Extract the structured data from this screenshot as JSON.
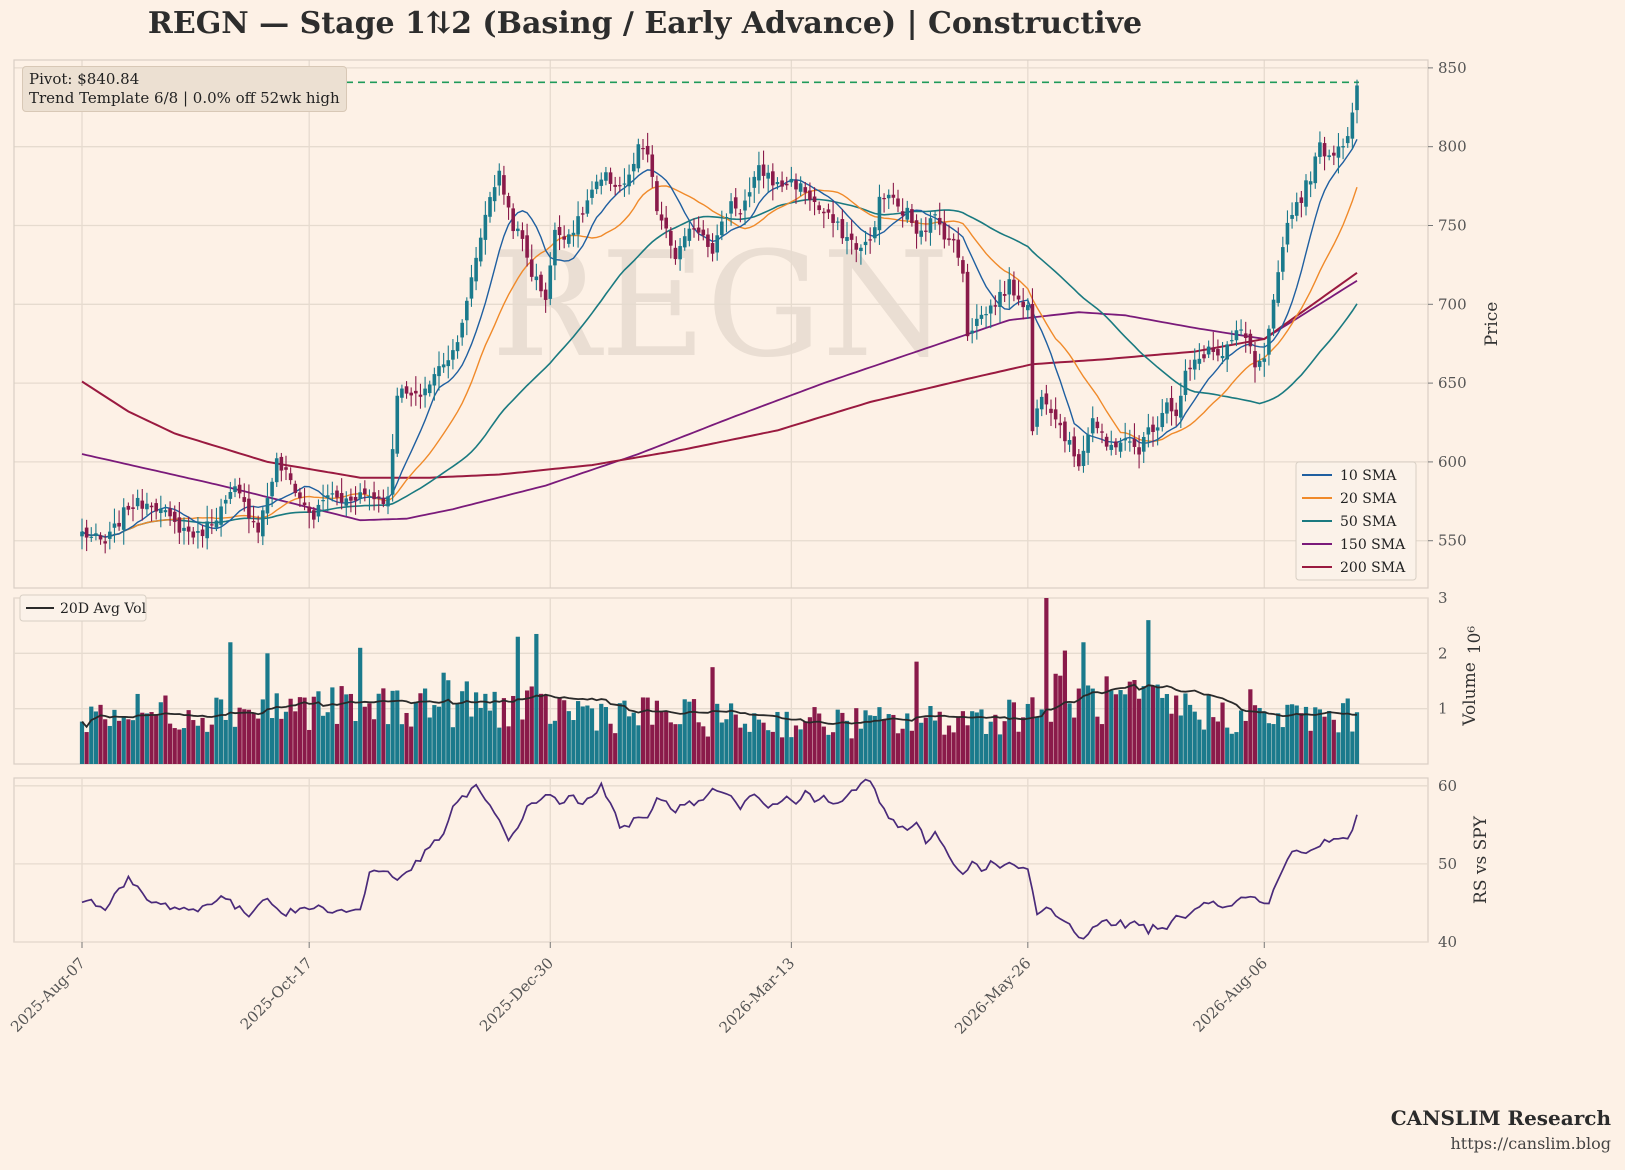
{
  "title": "REGN  —  Stage 1⇅2 (Basing / Early Advance)  |  Constructive",
  "annotation": {
    "pivot": "Pivot: $840.84",
    "trend": "Trend Template 6/8  |  0.0% off 52wk high"
  },
  "watermark": "REGN",
  "brand": {
    "name": "CANSLIM Research",
    "url": "https://canslim.blog"
  },
  "colors": {
    "background": "#fdf1e6",
    "up": "#1a7a8c",
    "down": "#8a1a4a",
    "sma10": "#1f5fa0",
    "sma20": "#f08a2a",
    "sma50": "#1a7a80",
    "sma150": "#7a1a7a",
    "sma200": "#9a1a40",
    "pivot": "#1f9a5a",
    "rs": "#4a2a7a",
    "avgvol": "#2a2a2a"
  },
  "chart_data": [
    {
      "type": "candlestick",
      "panel": "price",
      "ylabel": "Price",
      "ylim": [
        520,
        855
      ],
      "yticks": [
        550,
        600,
        650,
        700,
        750,
        800,
        850
      ],
      "xticklabels": [
        "2025-Aug-07",
        "2025-Oct-17",
        "2025-Dec-30",
        "2026-Mar-13",
        "2026-May-26",
        "2026-Aug-06"
      ],
      "pivot": 840.84,
      "close_anchors": [
        [
          0,
          555
        ],
        [
          5,
          548
        ],
        [
          10,
          572
        ],
        [
          15,
          575
        ],
        [
          20,
          560
        ],
        [
          25,
          553
        ],
        [
          30,
          570
        ],
        [
          33,
          582
        ],
        [
          36,
          568
        ],
        [
          38,
          558
        ],
        [
          40,
          578
        ],
        [
          42,
          600
        ],
        [
          45,
          588
        ],
        [
          48,
          572
        ],
        [
          50,
          565
        ],
        [
          53,
          580
        ],
        [
          56,
          575
        ],
        [
          60,
          580
        ],
        [
          66,
          576
        ],
        [
          68,
          645
        ],
        [
          72,
          640
        ],
        [
          75,
          650
        ],
        [
          78,
          664
        ],
        [
          80,
          670
        ],
        [
          83,
          700
        ],
        [
          85,
          730
        ],
        [
          88,
          770
        ],
        [
          90,
          782
        ],
        [
          93,
          750
        ],
        [
          95,
          740
        ],
        [
          97,
          720
        ],
        [
          100,
          705
        ],
        [
          102,
          745
        ],
        [
          105,
          745
        ],
        [
          107,
          752
        ],
        [
          110,
          772
        ],
        [
          113,
          780
        ],
        [
          116,
          775
        ],
        [
          118,
          780
        ],
        [
          120,
          798
        ],
        [
          122,
          795
        ],
        [
          124,
          760
        ],
        [
          126,
          745
        ],
        [
          128,
          730
        ],
        [
          130,
          740
        ],
        [
          132,
          750
        ],
        [
          134,
          745
        ],
        [
          136,
          735
        ],
        [
          138,
          750
        ],
        [
          140,
          765
        ],
        [
          142,
          760
        ],
        [
          144,
          770
        ],
        [
          146,
          785
        ],
        [
          148,
          782
        ],
        [
          150,
          775
        ],
        [
          153,
          778
        ],
        [
          156,
          772
        ],
        [
          159,
          760
        ],
        [
          162,
          752
        ],
        [
          165,
          742
        ],
        [
          168,
          735
        ],
        [
          170,
          740
        ],
        [
          172,
          765
        ],
        [
          174,
          770
        ],
        [
          176,
          760
        ],
        [
          178,
          758
        ],
        [
          180,
          748
        ],
        [
          182,
          750
        ],
        [
          184,
          755
        ],
        [
          186,
          745
        ],
        [
          188,
          738
        ],
        [
          190,
          722
        ],
        [
          191,
          682
        ],
        [
          193,
          690
        ],
        [
          196,
          698
        ],
        [
          200,
          712
        ],
        [
          204,
          698
        ],
        [
          205,
          620
        ],
        [
          207,
          645
        ],
        [
          210,
          630
        ],
        [
          213,
          610
        ],
        [
          215,
          600
        ],
        [
          218,
          628
        ],
        [
          221,
          608
        ],
        [
          224,
          614
        ],
        [
          228,
          608
        ],
        [
          230,
          620
        ],
        [
          232,
          625
        ],
        [
          234,
          640
        ],
        [
          236,
          628
        ],
        [
          238,
          655
        ],
        [
          240,
          662
        ],
        [
          243,
          672
        ],
        [
          246,
          665
        ],
        [
          249,
          682
        ],
        [
          251,
          680
        ],
        [
          253,
          660
        ],
        [
          255,
          662
        ],
        [
          257,
          700
        ],
        [
          259,
          740
        ],
        [
          261,
          760
        ],
        [
          263,
          768
        ],
        [
          265,
          782
        ],
        [
          267,
          800
        ],
        [
          269,
          795
        ],
        [
          271,
          800
        ],
        [
          273,
          808
        ],
        [
          275,
          840
        ]
      ],
      "sma_final": {
        "10": 800,
        "20": 756,
        "50": 685,
        "150": 715,
        "200": 720
      },
      "legend": [
        {
          "name": "10 SMA",
          "key": "sma10"
        },
        {
          "name": "20 SMA",
          "key": "sma20"
        },
        {
          "name": "50 SMA",
          "key": "sma50"
        },
        {
          "name": "150 SMA",
          "key": "sma150"
        },
        {
          "name": "200 SMA",
          "key": "sma200"
        }
      ]
    },
    {
      "type": "bar",
      "panel": "volume",
      "ylabel": "Volume",
      "scale_label": "10⁶",
      "ylim": [
        0,
        3
      ],
      "yticks": [
        1,
        2,
        3
      ],
      "legend": [
        {
          "name": "20D Avg Vol",
          "key": "avgvol"
        }
      ],
      "volume_anchors": [
        [
          0,
          0.9
        ],
        [
          20,
          0.95
        ],
        [
          40,
          1.0
        ],
        [
          60,
          1.05
        ],
        [
          80,
          1.1
        ],
        [
          100,
          1.0
        ],
        [
          120,
          0.9
        ],
        [
          140,
          0.8
        ],
        [
          160,
          0.75
        ],
        [
          180,
          0.75
        ],
        [
          200,
          0.9
        ],
        [
          210,
          1.2
        ],
        [
          230,
          1.1
        ],
        [
          250,
          0.85
        ],
        [
          275,
          0.85
        ]
      ],
      "spikes": [
        [
          32,
          2.2
        ],
        [
          40,
          2.0
        ],
        [
          60,
          2.1
        ],
        [
          78,
          1.65
        ],
        [
          94,
          2.3
        ],
        [
          98,
          2.35
        ],
        [
          136,
          1.75
        ],
        [
          180,
          1.85
        ],
        [
          208,
          3.0
        ],
        [
          212,
          2.05
        ],
        [
          216,
          2.2
        ],
        [
          230,
          2.6
        ],
        [
          252,
          1.35
        ]
      ]
    },
    {
      "type": "line",
      "panel": "rs",
      "ylabel": "RS vs SPY",
      "ylim": [
        40,
        61
      ],
      "yticks": [
        40,
        50,
        60
      ],
      "series": [
        {
          "anchors": [
            [
              0,
              45.5
            ],
            [
              5,
              44.5
            ],
            [
              10,
              48
            ],
            [
              15,
              45
            ],
            [
              20,
              44.5
            ],
            [
              25,
              44
            ],
            [
              30,
              46
            ],
            [
              33,
              44.5
            ],
            [
              36,
              43.5
            ],
            [
              40,
              46
            ],
            [
              43,
              43.5
            ],
            [
              46,
              44
            ],
            [
              50,
              44.5
            ],
            [
              55,
              44
            ],
            [
              60,
              44
            ],
            [
              62,
              49
            ],
            [
              66,
              49
            ],
            [
              68,
              48
            ],
            [
              72,
              50
            ],
            [
              75,
              52
            ],
            [
              78,
              54
            ],
            [
              80,
              57
            ],
            [
              83,
              59
            ],
            [
              85,
              60
            ],
            [
              87,
              58
            ],
            [
              90,
              55.5
            ],
            [
              92,
              53
            ],
            [
              94,
              55
            ],
            [
              96,
              57
            ],
            [
              98,
              58
            ],
            [
              100,
              59
            ],
            [
              103,
              58
            ],
            [
              106,
              58.5
            ],
            [
              108,
              57.5
            ],
            [
              110,
              58.5
            ],
            [
              112,
              60
            ],
            [
              114,
              58
            ],
            [
              116,
              55
            ],
            [
              118,
              55
            ],
            [
              120,
              56
            ],
            [
              122,
              55.5
            ],
            [
              124,
              58
            ],
            [
              126,
              58
            ],
            [
              128,
              57
            ],
            [
              130,
              58
            ],
            [
              132,
              57.5
            ],
            [
              134,
              58
            ],
            [
              136,
              60
            ],
            [
              138,
              59
            ],
            [
              140,
              58.5
            ],
            [
              142,
              57
            ],
            [
              144,
              59
            ],
            [
              146,
              58
            ],
            [
              148,
              57.5
            ],
            [
              150,
              58
            ],
            [
              152,
              59
            ],
            [
              154,
              58
            ],
            [
              156,
              59
            ],
            [
              158,
              58
            ],
            [
              160,
              58.5
            ],
            [
              162,
              57.5
            ],
            [
              164,
              58
            ],
            [
              166,
              59
            ],
            [
              168,
              60.5
            ],
            [
              170,
              60.5
            ],
            [
              172,
              58
            ],
            [
              174,
              56
            ],
            [
              176,
              55
            ],
            [
              178,
              54
            ],
            [
              180,
              55
            ],
            [
              182,
              53
            ],
            [
              184,
              54
            ],
            [
              186,
              52
            ],
            [
              188,
              50
            ],
            [
              190,
              49
            ],
            [
              192,
              50
            ],
            [
              194,
              49.5
            ],
            [
              196,
              50
            ],
            [
              198,
              49.5
            ],
            [
              200,
              50
            ],
            [
              202,
              49.5
            ],
            [
              204,
              49
            ],
            [
              206,
              43.5
            ],
            [
              208,
              44.5
            ],
            [
              210,
              43.5
            ],
            [
              212,
              42.5
            ],
            [
              214,
              41.5
            ],
            [
              216,
              40.5
            ],
            [
              218,
              42
            ],
            [
              220,
              43
            ],
            [
              222,
              42
            ],
            [
              224,
              42.5
            ],
            [
              226,
              42
            ],
            [
              228,
              42.5
            ],
            [
              230,
              41.5
            ],
            [
              232,
              42
            ],
            [
              234,
              42
            ],
            [
              236,
              43
            ],
            [
              238,
              43.5
            ],
            [
              240,
              44.5
            ],
            [
              242,
              45
            ],
            [
              244,
              45.5
            ],
            [
              246,
              44.5
            ],
            [
              248,
              45
            ],
            [
              250,
              45.5
            ],
            [
              252,
              46
            ],
            [
              254,
              45
            ],
            [
              256,
              45
            ],
            [
              258,
              48
            ],
            [
              260,
              51
            ],
            [
              262,
              52
            ],
            [
              264,
              51
            ],
            [
              266,
              52
            ],
            [
              268,
              53
            ],
            [
              270,
              53
            ],
            [
              272,
              53
            ],
            [
              274,
              54
            ],
            [
              275,
              56
            ]
          ]
        }
      ]
    }
  ]
}
